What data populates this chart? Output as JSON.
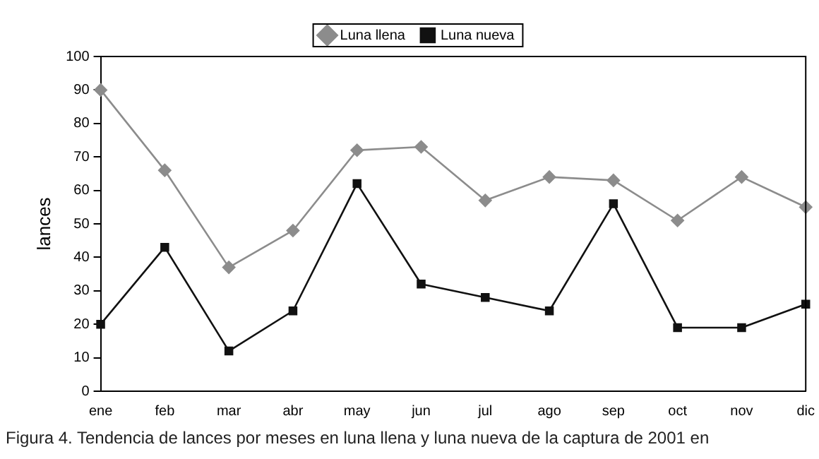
{
  "chart_data": {
    "type": "line",
    "ylabel": "lances",
    "categories": [
      "ene",
      "feb",
      "mar",
      "abr",
      "may",
      "jun",
      "jul",
      "ago",
      "sep",
      "oct",
      "nov",
      "dic"
    ],
    "series": [
      {
        "name": "Luna llena",
        "color": "#8c8c8c",
        "marker": "diamond",
        "values": [
          90,
          66,
          37,
          48,
          72,
          73,
          57,
          64,
          63,
          51,
          64,
          55
        ]
      },
      {
        "name": "Luna nueva",
        "color": "#111111",
        "marker": "square",
        "values": [
          20,
          43,
          12,
          24,
          62,
          32,
          28,
          24,
          56,
          19,
          19,
          26
        ]
      }
    ],
    "ylim": [
      0,
      100
    ],
    "yticks": [
      0,
      10,
      20,
      30,
      40,
      50,
      60,
      70,
      80,
      90,
      100
    ],
    "grid": false,
    "legend": "top",
    "line_style": "solid",
    "annotations": [
      "Figura 4. Tendencia de lances por meses en luna llena y luna nueva de la captura de 2001 en"
    ]
  }
}
